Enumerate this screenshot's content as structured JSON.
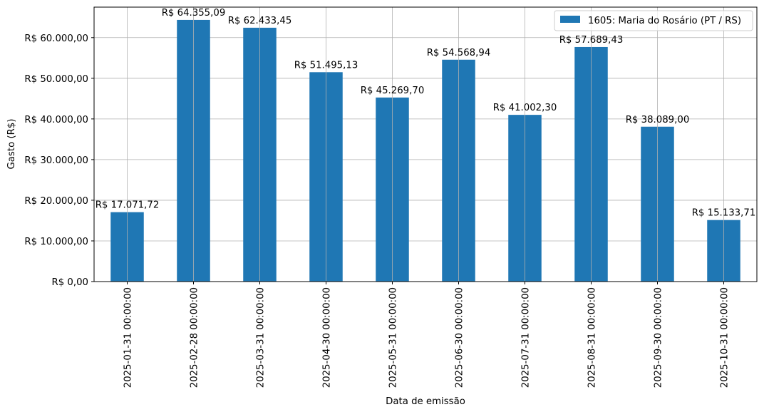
{
  "chart_data": {
    "type": "bar",
    "xlabel": "Data de emissão",
    "ylabel": "Gasto (R$)",
    "categories": [
      "2025-01-31 00:00:00",
      "2025-02-28 00:00:00",
      "2025-03-31 00:00:00",
      "2025-04-30 00:00:00",
      "2025-05-31 00:00:00",
      "2025-06-30 00:00:00",
      "2025-07-31 00:00:00",
      "2025-08-31 00:00:00",
      "2025-09-30 00:00:00",
      "2025-10-31 00:00:00"
    ],
    "series": [
      {
        "name": "1605: Maria do Rosário (PT / RS)",
        "color": "#1f77b4",
        "values": [
          17071.72,
          64355.09,
          62433.45,
          51495.13,
          45269.7,
          54568.94,
          41002.3,
          57689.43,
          38089.0,
          15133.71
        ],
        "labels": [
          "R$ 17.071,72",
          "R$ 64.355,09",
          "R$ 62.433,45",
          "R$ 51.495,13",
          "R$ 45.269,70",
          "R$ 54.568,94",
          "R$ 41.002,30",
          "R$ 57.689,43",
          "R$ 38.089,00",
          "R$ 15.133,71"
        ]
      }
    ],
    "y_ticks": [
      0,
      10000,
      20000,
      30000,
      40000,
      50000,
      60000
    ],
    "y_tick_labels": [
      "R$ 0,00",
      "R$ 10.000,00",
      "R$ 20.000,00",
      "R$ 30.000,00",
      "R$ 40.000,00",
      "R$ 50.000,00",
      "R$ 60.000,00"
    ],
    "ylim": [
      0,
      67500
    ],
    "grid": true,
    "legend_position": "top-right"
  }
}
